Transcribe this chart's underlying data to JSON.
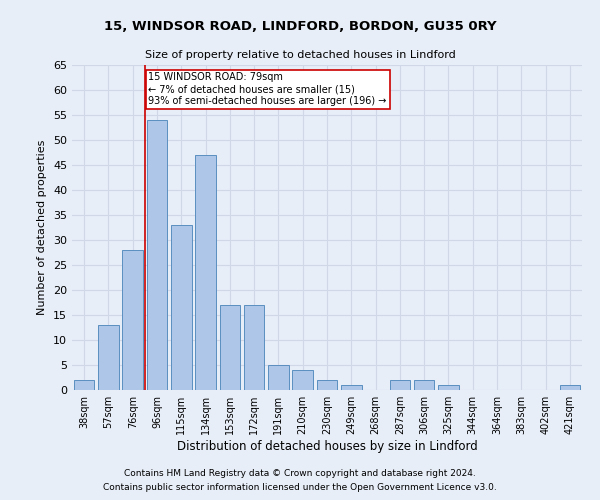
{
  "title1": "15, WINDSOR ROAD, LINDFORD, BORDON, GU35 0RY",
  "title2": "Size of property relative to detached houses in Lindford",
  "xlabel": "Distribution of detached houses by size in Lindford",
  "ylabel": "Number of detached properties",
  "categories": [
    "38sqm",
    "57sqm",
    "76sqm",
    "96sqm",
    "115sqm",
    "134sqm",
    "153sqm",
    "172sqm",
    "191sqm",
    "210sqm",
    "230sqm",
    "249sqm",
    "268sqm",
    "287sqm",
    "306sqm",
    "325sqm",
    "344sqm",
    "364sqm",
    "383sqm",
    "402sqm",
    "421sqm"
  ],
  "values": [
    2,
    13,
    28,
    54,
    33,
    47,
    17,
    17,
    5,
    4,
    2,
    1,
    0,
    2,
    2,
    1,
    0,
    0,
    0,
    0,
    1
  ],
  "bar_color": "#aec6e8",
  "bar_edge_color": "#5a8fc0",
  "grid_color": "#d0d8e8",
  "background_color": "#e8eef8",
  "red_line_x": 2.5,
  "annotation_text": "15 WINDSOR ROAD: 79sqm\n← 7% of detached houses are smaller (15)\n93% of semi-detached houses are larger (196) →",
  "annotation_box_color": "#ffffff",
  "annotation_edge_color": "#cc0000",
  "footer1": "Contains HM Land Registry data © Crown copyright and database right 2024.",
  "footer2": "Contains public sector information licensed under the Open Government Licence v3.0.",
  "ylim": [
    0,
    65
  ],
  "yticks": [
    0,
    5,
    10,
    15,
    20,
    25,
    30,
    35,
    40,
    45,
    50,
    55,
    60,
    65
  ]
}
